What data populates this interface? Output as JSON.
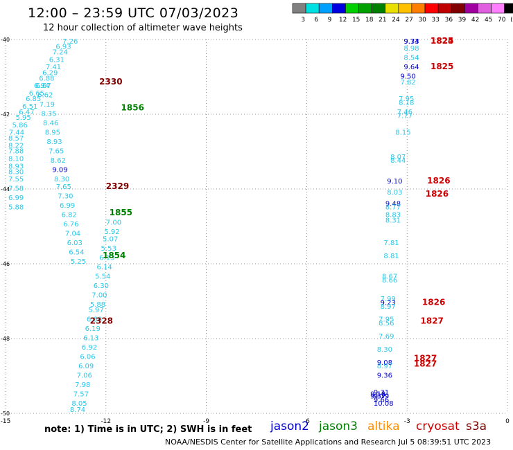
{
  "header": {
    "title": "12:00 – 23:59 UTC 07/03/2023",
    "subtitle": "12 hour collection of altimeter wave heights"
  },
  "color_scale": {
    "ticks": [
      "3",
      "6",
      "9",
      "12",
      "15",
      "18",
      "21",
      "24",
      "27",
      "30",
      "33",
      "36",
      "39",
      "42",
      "45",
      "70",
      "(ft)"
    ],
    "colors": [
      "#808080",
      "#00e0e0",
      "#00a0ff",
      "#0000e0",
      "#00d000",
      "#00a000",
      "#008000",
      "#e8e000",
      "#ffc000",
      "#ff8000",
      "#ff0000",
      "#c00000",
      "#800000",
      "#a000a0",
      "#e060e0",
      "#ff80ff",
      "#000000"
    ]
  },
  "footer": {
    "note": "note:  1) Time is in UTC;  2) SWH is in feet",
    "satellites": [
      {
        "name": "jason2",
        "color": "#0000cc"
      },
      {
        "name": "jason3",
        "color": "#008000"
      },
      {
        "name": "altika",
        "color": "#ff8c00"
      },
      {
        "name": "cryosat",
        "color": "#cc0000"
      },
      {
        "name": "s3a",
        "color": "#800000"
      }
    ],
    "credit": "NOAA/NESDIS Center for Satellite Applications and Research    Jul  5 08:39:51 UTC 2023"
  },
  "chart_data": {
    "type": "scatter",
    "xlim": [
      -15,
      0
    ],
    "ylim": [
      -50,
      -40
    ],
    "xticks": [
      "-15",
      "-12",
      "-9",
      "-6",
      "-3",
      "0"
    ],
    "yticks": [
      "-40",
      "-42",
      "-44",
      "-46",
      "-48",
      "-50"
    ],
    "grid": true,
    "labels": [
      {
        "x": -13.4,
        "y": -40.1,
        "t": "7.26",
        "c": "#28c8e8"
      },
      {
        "x": -13.6,
        "y": -40.25,
        "t": "6.93",
        "c": "#28c8e8"
      },
      {
        "x": -13.7,
        "y": -40.4,
        "t": "7.24",
        "c": "#28c8e8"
      },
      {
        "x": -13.8,
        "y": -40.6,
        "t": "6.31",
        "c": "#28c8e8"
      },
      {
        "x": -13.9,
        "y": -40.8,
        "t": "7.41",
        "c": "#28c8e8"
      },
      {
        "x": -14.0,
        "y": -40.95,
        "t": "6.29",
        "c": "#28c8e8"
      },
      {
        "x": -14.1,
        "y": -41.1,
        "t": "6.88",
        "c": "#28c8e8"
      },
      {
        "x": -14.25,
        "y": -41.3,
        "t": "6.94",
        "c": "#28c8e8"
      },
      {
        "x": -14.4,
        "y": -41.5,
        "t": "6.65",
        "c": "#28c8e8"
      },
      {
        "x": -14.5,
        "y": -41.65,
        "t": "6.85",
        "c": "#28c8e8"
      },
      {
        "x": -14.6,
        "y": -41.85,
        "t": "6.51",
        "c": "#28c8e8"
      },
      {
        "x": -14.7,
        "y": -42.0,
        "t": "6.47",
        "c": "#28c8e8"
      },
      {
        "x": -14.8,
        "y": -42.15,
        "t": "5.95",
        "c": "#28c8e8"
      },
      {
        "x": -14.9,
        "y": -42.35,
        "t": "5.86",
        "c": "#28c8e8"
      },
      {
        "x": -15.0,
        "y": -42.55,
        "t": "7.44",
        "c": "#28c8e8"
      },
      {
        "x": -15.1,
        "y": -42.7,
        "t": "8.57",
        "c": "#28c8e8"
      },
      {
        "x": -15.2,
        "y": -42.9,
        "t": "8.22",
        "c": "#28c8e8"
      },
      {
        "x": -15.3,
        "y": -43.05,
        "t": "7.88",
        "c": "#28c8e8"
      },
      {
        "x": -15.4,
        "y": -43.25,
        "t": "8.10",
        "c": "#28c8e8"
      },
      {
        "x": -15.5,
        "y": -43.45,
        "t": "8.93",
        "c": "#28c8e8"
      },
      {
        "x": -15.6,
        "y": -43.6,
        "t": "8.30",
        "c": "#28c8e8"
      },
      {
        "x": -15.7,
        "y": -43.8,
        "t": "7.55",
        "c": "#28c8e8"
      },
      {
        "x": -15.8,
        "y": -44.05,
        "t": "7.58",
        "c": "#28c8e8"
      },
      {
        "x": -15.9,
        "y": -44.3,
        "t": "6.99",
        "c": "#28c8e8"
      },
      {
        "x": -16.0,
        "y": -44.55,
        "t": "5.88",
        "c": "#28c8e8"
      },
      {
        "x": -16.2,
        "y": -44.95,
        "t": "7.00",
        "c": "#28c8e8"
      },
      {
        "x": -16.3,
        "y": -45.2,
        "t": "5.92",
        "c": "#28c8e8"
      },
      {
        "x": -16.4,
        "y": -45.4,
        "t": "5.07",
        "c": "#28c8e8"
      },
      {
        "x": -16.5,
        "y": -45.65,
        "t": "5.53",
        "c": "#28c8e8"
      },
      {
        "x": -16.6,
        "y": -45.9,
        "t": "6.13",
        "c": "#28c8e8"
      },
      {
        "x": -16.75,
        "y": -46.15,
        "t": "6.14",
        "c": "#28c8e8"
      },
      {
        "x": -16.85,
        "y": -46.4,
        "t": "5.54",
        "c": "#28c8e8"
      },
      {
        "x": -16.95,
        "y": -46.65,
        "t": "6.30",
        "c": "#28c8e8"
      },
      {
        "x": -17.05,
        "y": -46.9,
        "t": "7.00",
        "c": "#28c8e8"
      },
      {
        "x": -17.15,
        "y": -47.15,
        "t": "5.88",
        "c": "#28c8e8"
      },
      {
        "x": -17.25,
        "y": -47.3,
        "t": "5.97",
        "c": "#28c8e8"
      },
      {
        "x": -17.35,
        "y": -47.55,
        "t": "6.88",
        "c": "#28c8e8"
      },
      {
        "x": -17.45,
        "y": -47.8,
        "t": "6.19",
        "c": "#28c8e8"
      },
      {
        "x": -17.55,
        "y": -48.05,
        "t": "6.13",
        "c": "#28c8e8"
      },
      {
        "x": -17.65,
        "y": -48.3,
        "t": "6.92",
        "c": "#28c8e8"
      },
      {
        "x": -17.75,
        "y": -48.55,
        "t": "6.06",
        "c": "#28c8e8"
      },
      {
        "x": -17.85,
        "y": -48.8,
        "t": "6.09",
        "c": "#28c8e8"
      },
      {
        "x": -17.95,
        "y": -49.05,
        "t": "7.06",
        "c": "#28c8e8"
      },
      {
        "x": -18.05,
        "y": -49.3,
        "t": "7.98",
        "c": "#28c8e8"
      },
      {
        "x": -18.15,
        "y": -49.55,
        "t": "7.57",
        "c": "#28c8e8"
      },
      {
        "x": -18.25,
        "y": -49.8,
        "t": "8.05",
        "c": "#28c8e8"
      },
      {
        "x": -18.35,
        "y": -50.05,
        "t": "8.74",
        "c": "#28c8e8"
      },
      {
        "x": -24.0,
        "y": -41.3,
        "t": "6.67",
        "c": "#28c8e8"
      },
      {
        "x": -23.9,
        "y": -41.55,
        "t": "6.62",
        "c": "#28c8e8"
      },
      {
        "x": -23.8,
        "y": -41.8,
        "t": "7.19",
        "c": "#28c8e8"
      },
      {
        "x": -23.7,
        "y": -42.05,
        "t": "8.35",
        "c": "#28c8e8"
      },
      {
        "x": -23.6,
        "y": -42.3,
        "t": "8.46",
        "c": "#28c8e8"
      },
      {
        "x": -23.5,
        "y": -42.55,
        "t": "8.95",
        "c": "#28c8e8"
      },
      {
        "x": -23.4,
        "y": -42.8,
        "t": "8.93",
        "c": "#28c8e8"
      },
      {
        "x": -23.3,
        "y": -43.05,
        "t": "7.65",
        "c": "#28c8e8"
      },
      {
        "x": -23.2,
        "y": -43.3,
        "t": "8.62",
        "c": "#28c8e8"
      },
      {
        "x": -23.1,
        "y": -43.55,
        "t": "9.09",
        "c": "#0000cc"
      },
      {
        "x": -23.0,
        "y": -43.8,
        "t": "8.30",
        "c": "#28c8e8"
      },
      {
        "x": -22.9,
        "y": -44.0,
        "t": "7.65",
        "c": "#28c8e8"
      },
      {
        "x": -22.8,
        "y": -44.25,
        "t": "7.30",
        "c": "#28c8e8"
      },
      {
        "x": -22.7,
        "y": -44.5,
        "t": "6.99",
        "c": "#28c8e8"
      },
      {
        "x": -22.6,
        "y": -44.75,
        "t": "6.82",
        "c": "#28c8e8"
      },
      {
        "x": -22.5,
        "y": -45.0,
        "t": "6.76",
        "c": "#28c8e8"
      },
      {
        "x": -22.4,
        "y": -45.25,
        "t": "7.04",
        "c": "#28c8e8"
      },
      {
        "x": -22.3,
        "y": -45.5,
        "t": "6.03",
        "c": "#28c8e8"
      },
      {
        "x": -22.2,
        "y": -45.75,
        "t": "6.54",
        "c": "#28c8e8"
      },
      {
        "x": -22.1,
        "y": -46.0,
        "t": "5.25",
        "c": "#28c8e8"
      },
      {
        "x": -3.2,
        "y": -40.0,
        "t": "9.74",
        "c": "#0000cc"
      },
      {
        "x": -3.2,
        "y": -40.1,
        "t": "9.33",
        "c": "#0000cc"
      },
      {
        "x": -3.2,
        "y": -40.3,
        "t": "8.98",
        "c": "#28c8e8"
      },
      {
        "x": -3.2,
        "y": -40.55,
        "t": "8.54",
        "c": "#28c8e8"
      },
      {
        "x": -3.2,
        "y": -40.8,
        "t": "9.64",
        "c": "#0000cc"
      },
      {
        "x": -3.3,
        "y": -41.05,
        "t": "9.50",
        "c": "#0000cc"
      },
      {
        "x": -3.3,
        "y": -41.2,
        "t": "7.82",
        "c": "#28c8e8"
      },
      {
        "x": -3.35,
        "y": -41.65,
        "t": "7.95",
        "c": "#28c8e8"
      },
      {
        "x": -3.35,
        "y": -41.75,
        "t": "8.18",
        "c": "#28c8e8"
      },
      {
        "x": -3.4,
        "y": -42.0,
        "t": "7.46",
        "c": "#28c8e8"
      },
      {
        "x": -3.4,
        "y": -42.1,
        "t": "7.77",
        "c": "#28c8e8"
      },
      {
        "x": -3.45,
        "y": -42.55,
        "t": "8.15",
        "c": "#28c8e8"
      },
      {
        "x": -3.6,
        "y": -43.2,
        "t": "8.07",
        "c": "#28c8e8"
      },
      {
        "x": -3.6,
        "y": -43.3,
        "t": "8.44",
        "c": "#28c8e8"
      },
      {
        "x": -3.7,
        "y": -43.85,
        "t": "9.10",
        "c": "#0000cc"
      },
      {
        "x": -3.7,
        "y": -44.15,
        "t": "8.03",
        "c": "#28c8e8"
      },
      {
        "x": -3.75,
        "y": -44.45,
        "t": "9.48",
        "c": "#0000cc"
      },
      {
        "x": -3.75,
        "y": -44.55,
        "t": "8.77",
        "c": "#28c8e8"
      },
      {
        "x": -3.75,
        "y": -44.75,
        "t": "8.83",
        "c": "#28c8e8"
      },
      {
        "x": -3.75,
        "y": -44.9,
        "t": "8.31",
        "c": "#28c8e8"
      },
      {
        "x": -3.8,
        "y": -45.5,
        "t": "7.81",
        "c": "#28c8e8"
      },
      {
        "x": -3.8,
        "y": -45.85,
        "t": "8.81",
        "c": "#28c8e8"
      },
      {
        "x": -3.85,
        "y": -46.4,
        "t": "8.67",
        "c": "#28c8e8"
      },
      {
        "x": -3.85,
        "y": -46.5,
        "t": "8.66",
        "c": "#28c8e8"
      },
      {
        "x": -3.9,
        "y": -47.0,
        "t": "7.99",
        "c": "#28c8e8"
      },
      {
        "x": -3.9,
        "y": -47.1,
        "t": "9.23",
        "c": "#0000cc"
      },
      {
        "x": -3.9,
        "y": -47.2,
        "t": "8.97",
        "c": "#28c8e8"
      },
      {
        "x": -3.95,
        "y": -47.55,
        "t": "7.95",
        "c": "#28c8e8"
      },
      {
        "x": -3.95,
        "y": -47.65,
        "t": "8.56",
        "c": "#28c8e8"
      },
      {
        "x": -3.95,
        "y": -48.0,
        "t": "7.69",
        "c": "#28c8e8"
      },
      {
        "x": -4.0,
        "y": -48.35,
        "t": "8.30",
        "c": "#28c8e8"
      },
      {
        "x": -4.0,
        "y": -48.7,
        "t": "9.08",
        "c": "#0000cc"
      },
      {
        "x": -4.0,
        "y": -48.8,
        "t": "8.97",
        "c": "#28c8e8"
      },
      {
        "x": -4.0,
        "y": -49.05,
        "t": "9.36",
        "c": "#0000cc"
      },
      {
        "x": -4.1,
        "y": -49.5,
        "t": "9.31",
        "c": "#0000cc"
      },
      {
        "x": -4.1,
        "y": -49.6,
        "t": "9.79",
        "c": "#0000cc"
      },
      {
        "x": -4.1,
        "y": -49.7,
        "t": "9.66",
        "c": "#0000cc"
      },
      {
        "x": -4.1,
        "y": -49.8,
        "t": "10.08",
        "c": "#0000cc"
      },
      {
        "x": -4.2,
        "y": -49.55,
        "t": "9.18",
        "c": "#0000cc"
      },
      {
        "x": -4.2,
        "y": -49.6,
        "t": "9.37",
        "c": "#0000cc"
      }
    ],
    "track_times": [
      {
        "x": -13.55,
        "y": -41.9,
        "t": "1856",
        "c": "#008000"
      },
      {
        "x": -14.0,
        "y": -44.0,
        "t": "2329",
        "c": "#800000"
      },
      {
        "x": -13.9,
        "y": -44.7,
        "t": "1855",
        "c": "#008000"
      },
      {
        "x": -14.1,
        "y": -45.85,
        "t": "1854",
        "c": "#008000"
      },
      {
        "x": -12.1,
        "y": -41.2,
        "t": "2330",
        "c": "#800000"
      },
      {
        "x": -12.8,
        "y": -47.6,
        "t": "2328",
        "c": "#800000"
      },
      {
        "x": -2.3,
        "y": -40.0,
        "t": "1824",
        "c": "#cc0000"
      },
      {
        "x": -2.3,
        "y": -40.1,
        "t": "1825",
        "c": "#cc0000"
      },
      {
        "x": -2.3,
        "y": -40.8,
        "t": "1825",
        "c": "#cc0000"
      },
      {
        "x": -2.4,
        "y": -43.85,
        "t": "1826",
        "c": "#cc0000"
      },
      {
        "x": -2.45,
        "y": -44.2,
        "t": "1826",
        "c": "#cc0000"
      },
      {
        "x": -2.55,
        "y": -47.1,
        "t": "1826",
        "c": "#cc0000"
      },
      {
        "x": -2.6,
        "y": -47.6,
        "t": "1827",
        "c": "#cc0000"
      },
      {
        "x": -2.8,
        "y": -48.6,
        "t": "1827",
        "c": "#cc0000"
      },
      {
        "x": -2.8,
        "y": -48.75,
        "t": "1827",
        "c": "#cc0000"
      }
    ]
  }
}
